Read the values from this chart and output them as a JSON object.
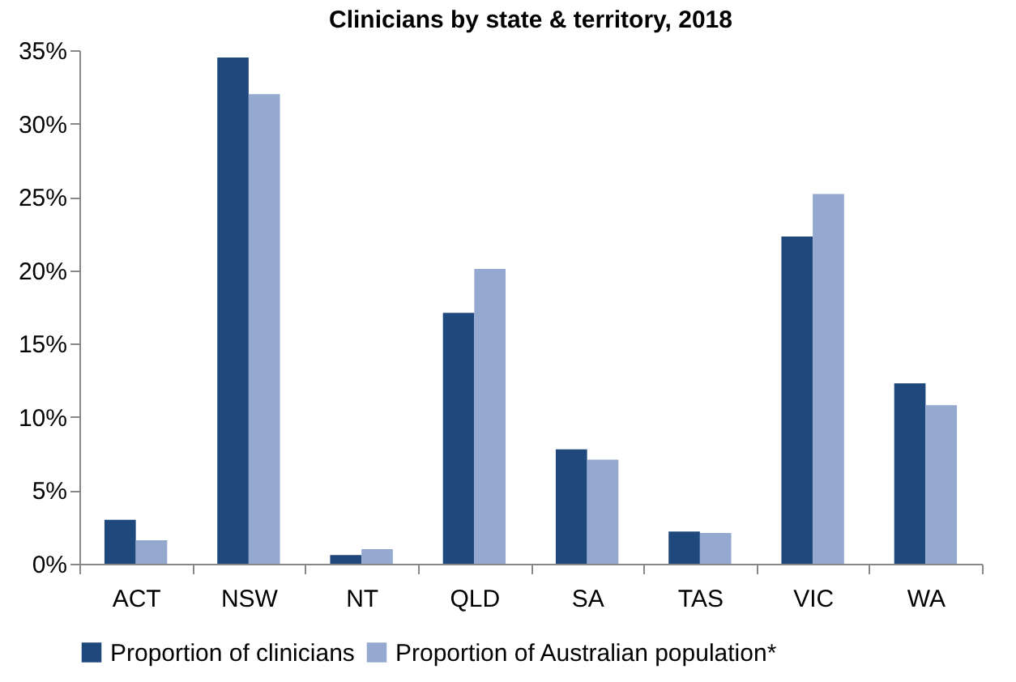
{
  "chart_data": {
    "type": "bar",
    "title": "Clinicians by state & territory, 2018",
    "categories": [
      "ACT",
      "NSW",
      "NT",
      "QLD",
      "SA",
      "TAS",
      "VIC",
      "WA"
    ],
    "series": [
      {
        "name": "Proportion of clinicians",
        "color": "#1f497d",
        "values": [
          3.0,
          34.5,
          0.6,
          17.1,
          7.8,
          2.2,
          22.3,
          12.3
        ]
      },
      {
        "name": "Proportion of Australian population*",
        "color": "#95a9d0",
        "values": [
          1.6,
          32.0,
          1.0,
          20.1,
          7.1,
          2.1,
          25.2,
          10.8
        ]
      }
    ],
    "ylim": [
      0,
      35
    ],
    "yticks": [
      {
        "value": 0,
        "label": "0%"
      },
      {
        "value": 5,
        "label": "5%"
      },
      {
        "value": 10,
        "label": "10%"
      },
      {
        "value": 15,
        "label": "15%"
      },
      {
        "value": 20,
        "label": "20%"
      },
      {
        "value": 25,
        "label": "25%"
      },
      {
        "value": 30,
        "label": "30%"
      },
      {
        "value": 35,
        "label": "35%"
      }
    ],
    "grid": false,
    "legend": "bottom"
  }
}
